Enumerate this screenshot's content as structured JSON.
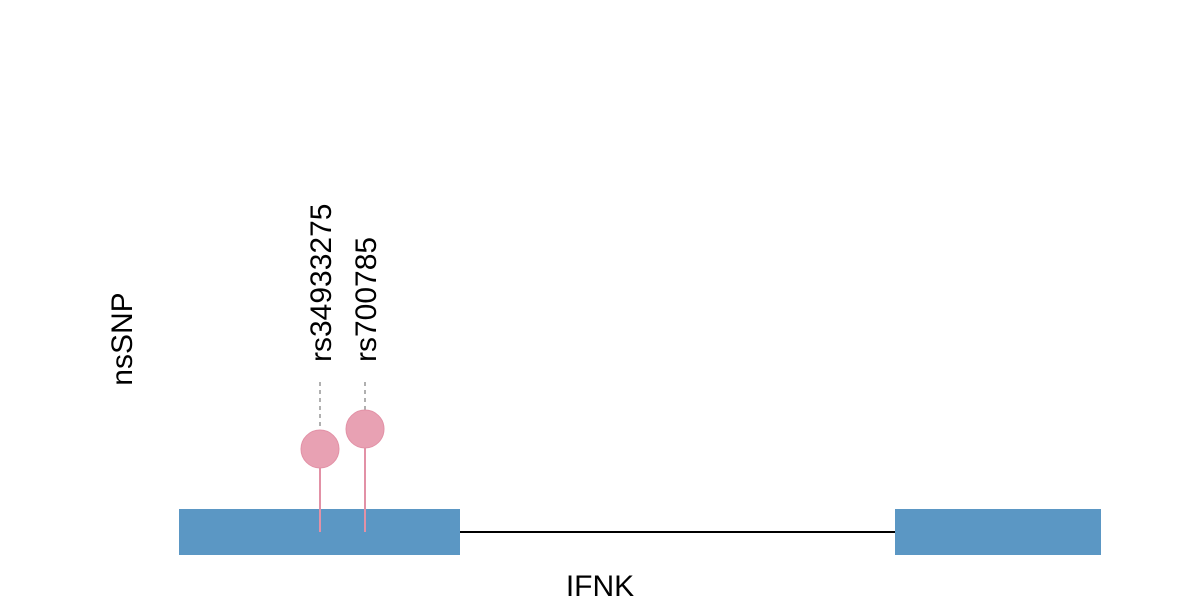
{
  "track_label": "nsSNP",
  "gene_label": "IFNK",
  "colors": {
    "exon": "#5b97c4",
    "intron": "#000000",
    "snp_fill": "#e8a1b3",
    "snp_stroke": "#e291a6",
    "guide": "#b0b0b0"
  },
  "snps": [
    {
      "id": "rs34933275"
    },
    {
      "id": "rs700785"
    }
  ]
}
